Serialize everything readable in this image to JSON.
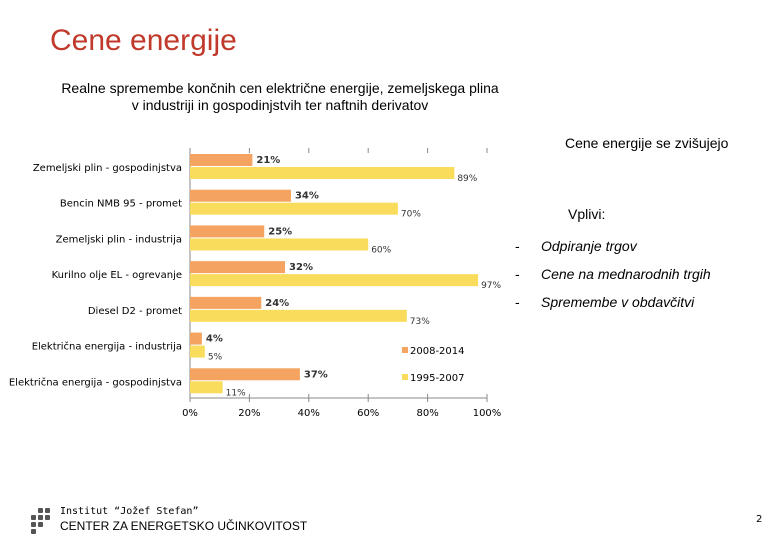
{
  "page": {
    "title": "Cene energije",
    "side_note": "Cene energije se zvišujejo",
    "influences_heading": "Vplivi:",
    "influences": [
      {
        "dash": "-",
        "text": "Odpiranje trgov"
      },
      {
        "dash": "-",
        "text": "Cene na mednarodnih trgih"
      },
      {
        "dash": "-",
        "text": "Spremembe  v obdavčitvi"
      }
    ],
    "footer_institute": "Institut “Jožef Stefan”",
    "footer_center": "CENTER ZA ENERGETSKO UČINKOVITOST",
    "page_number": "2"
  },
  "colors": {
    "title": "#c0392b",
    "series_2008_2014": "#f4a460",
    "series_1995_2007": "#f9dc5c",
    "grid": "#888888"
  },
  "chart_data": {
    "type": "bar",
    "orientation": "horizontal",
    "title": "Realne spremembe končnih cen električne energije, zemeljskega plina v industriji in gospodinjstvih ter naftnih derivatov",
    "categories": [
      "Zemeljski plin - gospodinjstva",
      "Bencin NMB 95 - promet",
      "Zemeljski plin - industrija",
      "Kurilno olje EL - ogrevanje",
      "Diesel D2 - promet",
      "Električna energija - industrija",
      "Električna energija - gospodinjstva"
    ],
    "series": [
      {
        "name": "2008-2014",
        "values": [
          21,
          34,
          25,
          32,
          24,
          4,
          37
        ],
        "labels": [
          "21%",
          "34%",
          "25%",
          "32%",
          "24%",
          "4%",
          "37%"
        ]
      },
      {
        "name": "1995-2007",
        "values": [
          89,
          70,
          60,
          97,
          73,
          5,
          11
        ],
        "labels": [
          "89%",
          "70%",
          "60%",
          "97%",
          "73%",
          "5%",
          "11%"
        ]
      }
    ],
    "xlim": [
      0,
      100
    ],
    "xticks": [
      "0%",
      "20%",
      "40%",
      "60%",
      "80%",
      "100%"
    ],
    "legend": [
      "2008-2014",
      "1995-2007"
    ],
    "legend_position": "right"
  }
}
